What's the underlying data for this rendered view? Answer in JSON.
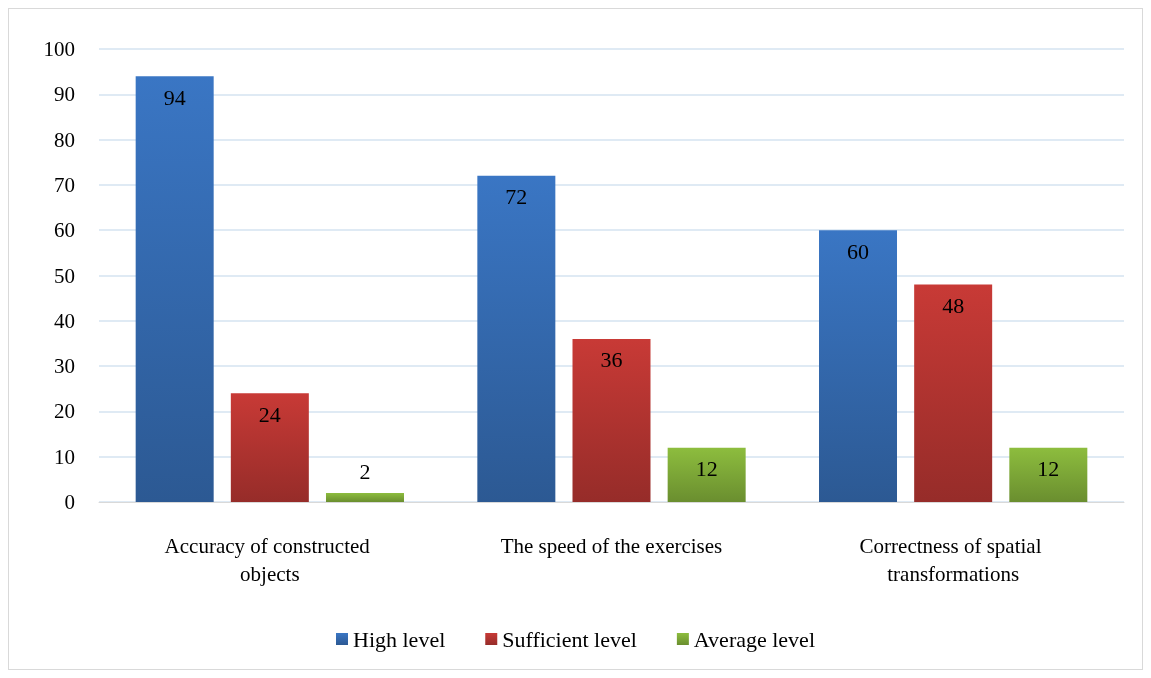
{
  "chart_data": {
    "type": "bar",
    "categories": [
      "Accuracy of constructed objects",
      "The speed of the exercises",
      "Correctness of spatial transformations"
    ],
    "series": [
      {
        "name": "High level",
        "color": "#3a76c4",
        "values": [
          94,
          72,
          60
        ]
      },
      {
        "name": "Sufficient level",
        "color": "#c83a36",
        "values": [
          24,
          36,
          48
        ]
      },
      {
        "name": "Average level",
        "color": "#8dbd3e",
        "values": [
          2,
          12,
          12
        ]
      }
    ],
    "ylim": [
      0,
      100
    ],
    "yticks": [
      0,
      10,
      20,
      30,
      40,
      50,
      60,
      70,
      80,
      90,
      100
    ],
    "grid": "y",
    "legend": "bottom",
    "data_labels": true
  }
}
